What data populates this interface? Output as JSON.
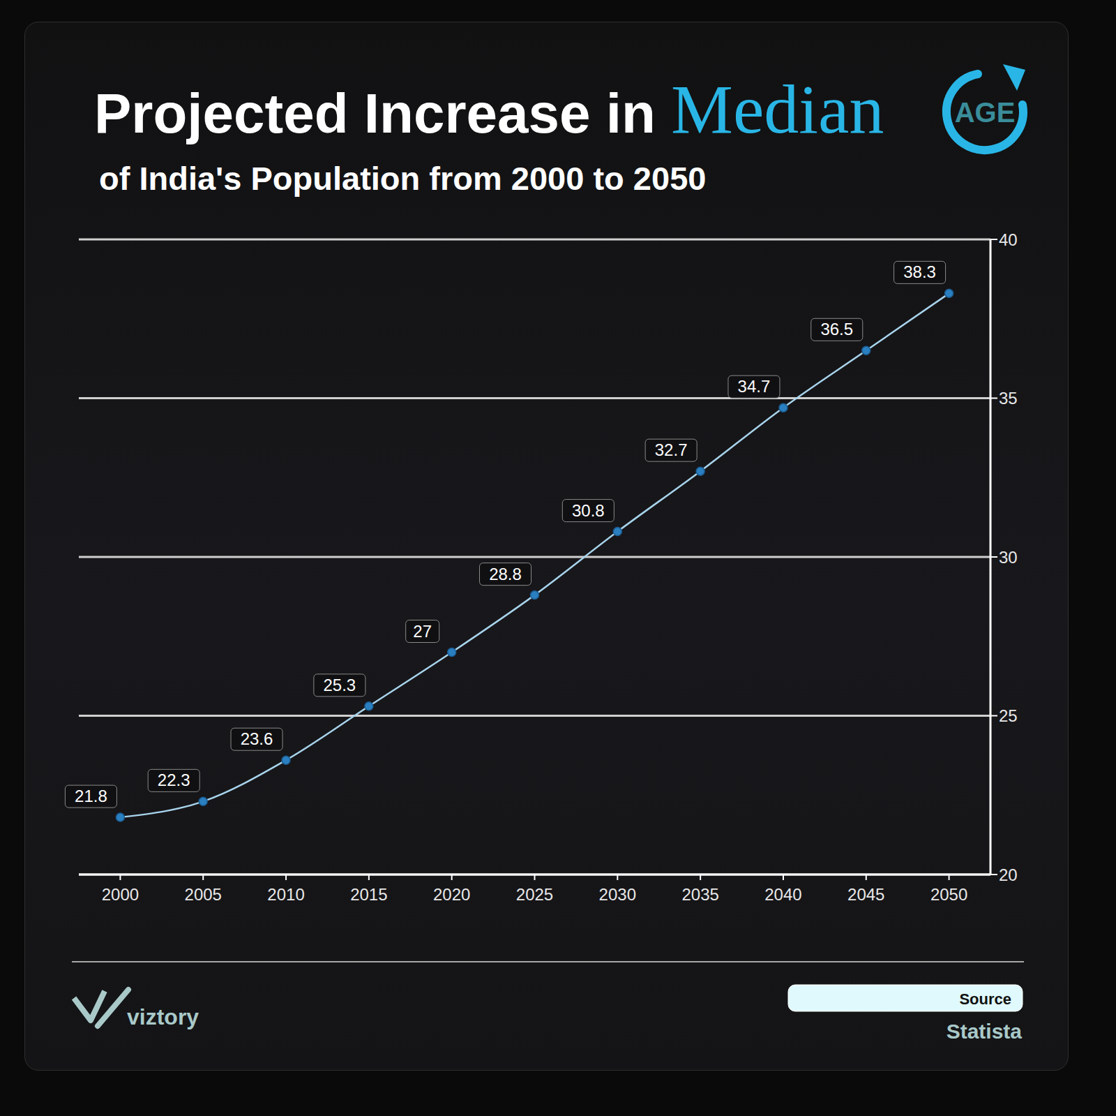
{
  "chart_data": {
    "type": "line",
    "title": "Projected Increase in Median",
    "badge": "AGE",
    "subtitle": "of India's Population from 2000 to 2050",
    "x": [
      2000,
      2005,
      2010,
      2015,
      2020,
      2025,
      2030,
      2035,
      2040,
      2045,
      2050
    ],
    "values": [
      21.8,
      22.3,
      23.6,
      25.3,
      27,
      28.8,
      30.8,
      32.7,
      34.7,
      36.5,
      38.3
    ],
    "color": "#a8d4ec",
    "marker": "circle",
    "xlim": [
      1997.5,
      2052.5
    ],
    "xticks": [
      2000,
      2005,
      2010,
      2015,
      2020,
      2025,
      2030,
      2035,
      2040,
      2045,
      2050
    ],
    "ylim": [
      20,
      40
    ],
    "yticks": [
      20,
      25,
      30,
      35,
      40
    ],
    "grid": true,
    "data_labels": true,
    "brand": "viztory",
    "source_label": "Source",
    "source": "Statista"
  }
}
